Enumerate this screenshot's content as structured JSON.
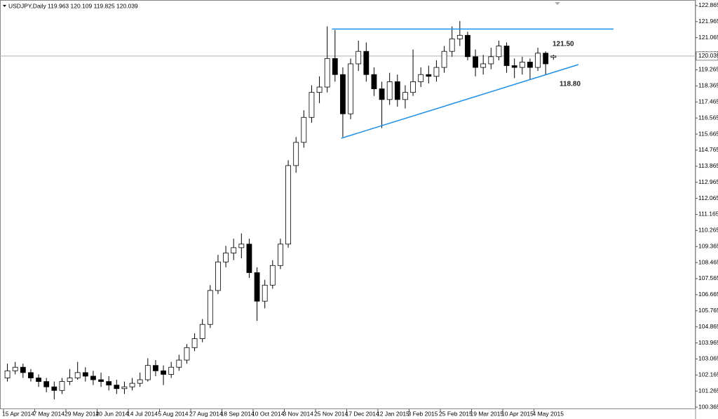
{
  "chart_data": {
    "type": "candlestick",
    "title": "USDJPY,Daily  119.963 120.109 119.825 120.039",
    "categories": [
      "15 Apr 2014",
      null,
      null,
      null,
      "7 May 2014",
      null,
      null,
      null,
      "29 May 2014",
      null,
      null,
      null,
      "20 Jun 2014",
      null,
      null,
      null,
      "14 Jul 2014",
      null,
      null,
      null,
      "5 Aug 2014",
      null,
      null,
      null,
      "27 Aug 2014",
      null,
      null,
      null,
      "18 Sep 2014",
      null,
      null,
      null,
      "10 Oct 2014",
      null,
      null,
      null,
      "3 Nov 2014",
      null,
      null,
      null,
      "25 Nov 2014",
      null,
      null,
      null,
      "17 Dec 2014",
      null,
      null,
      null,
      "12 Jan 2015",
      null,
      null,
      null,
      "3 Feb 2015",
      null,
      null,
      null,
      "25 Feb 2015",
      null,
      null,
      null,
      "19 Mar 2015",
      null,
      null,
      null,
      "10 Apr 2015",
      null,
      null,
      null,
      "4 May 2015",
      null,
      null
    ],
    "open": [
      102.0,
      102.4,
      102.6,
      102.3,
      102.0,
      101.8,
      101.5,
      101.3,
      101.8,
      102.0,
      102.3,
      102.1,
      101.9,
      101.8,
      101.6,
      101.4,
      101.5,
      101.7,
      101.9,
      102.7,
      102.4,
      102.2,
      102.6,
      103.0,
      103.7,
      104.2,
      105.0,
      106.9,
      108.5,
      109.0,
      109.3,
      109.5,
      107.9,
      106.3,
      107.2,
      108.3,
      109.5,
      113.9,
      115.2,
      116.6,
      118.0,
      118.3,
      119.9,
      119.0,
      116.8,
      119.6,
      120.3,
      119.0,
      118.2,
      117.6,
      118.6,
      117.6,
      118.0,
      118.6,
      119.0,
      118.9,
      119.4,
      120.3,
      121.0,
      121.2,
      120.0,
      119.4,
      119.6,
      120.0,
      120.6,
      119.5,
      119.4,
      119.7,
      119.4,
      120.2,
      119.963
    ],
    "high": [
      102.8,
      102.9,
      102.8,
      102.5,
      102.2,
      102.0,
      101.8,
      102.0,
      102.5,
      102.9,
      102.6,
      102.4,
      102.3,
      102.1,
      101.9,
      101.8,
      102.0,
      102.3,
      103.1,
      103.0,
      102.7,
      102.9,
      103.3,
      103.9,
      104.5,
      105.3,
      107.2,
      108.9,
      109.4,
      109.8,
      110.1,
      109.8,
      108.2,
      107.5,
      108.6,
      109.8,
      114.2,
      115.5,
      117.0,
      118.4,
      118.9,
      121.7,
      121.5,
      119.4,
      119.9,
      120.9,
      120.8,
      119.4,
      118.6,
      119.1,
      119.0,
      118.4,
      120.4,
      119.4,
      119.5,
      119.8,
      120.6,
      121.7,
      122.0,
      121.4,
      120.4,
      120.1,
      120.5,
      120.9,
      120.8,
      119.9,
      120.0,
      119.9,
      120.5,
      120.3,
      120.109
    ],
    "low": [
      101.8,
      102.2,
      102.0,
      101.8,
      101.5,
      101.2,
      100.8,
      101.1,
      101.6,
      101.9,
      101.8,
      101.6,
      101.5,
      101.3,
      101.1,
      101.1,
      101.3,
      101.5,
      101.8,
      102.1,
      101.6,
      102.0,
      102.4,
      102.8,
      103.5,
      104.0,
      104.8,
      106.7,
      108.2,
      108.6,
      108.7,
      107.6,
      105.2,
      105.9,
      107.0,
      108.1,
      109.3,
      113.5,
      114.9,
      116.3,
      117.4,
      118.0,
      118.6,
      115.5,
      116.5,
      119.2,
      118.6,
      117.8,
      116.0,
      117.3,
      117.2,
      117.1,
      117.8,
      118.3,
      118.5,
      118.6,
      119.1,
      120.0,
      120.6,
      119.8,
      118.9,
      119.0,
      119.3,
      119.8,
      119.1,
      118.8,
      119.0,
      118.7,
      119.2,
      119.0,
      119.825
    ],
    "close": [
      102.4,
      102.6,
      102.3,
      102.0,
      101.8,
      101.5,
      101.3,
      101.8,
      102.0,
      102.3,
      102.1,
      101.9,
      101.8,
      101.6,
      101.4,
      101.5,
      101.7,
      101.9,
      102.7,
      102.4,
      102.2,
      102.6,
      103.0,
      103.7,
      104.2,
      105.0,
      106.9,
      108.5,
      109.0,
      109.3,
      109.5,
      107.9,
      106.3,
      107.2,
      108.3,
      109.5,
      113.9,
      115.2,
      116.6,
      118.0,
      118.3,
      119.9,
      119.0,
      116.8,
      119.6,
      120.3,
      119.0,
      118.2,
      117.6,
      118.6,
      117.6,
      118.0,
      118.6,
      119.0,
      118.9,
      119.4,
      120.3,
      121.0,
      121.2,
      120.0,
      119.4,
      119.6,
      120.0,
      120.6,
      119.5,
      119.4,
      119.7,
      119.4,
      120.2,
      119.6,
      120.039
    ],
    "up_color": "#ffffff",
    "down_color": "#000000",
    "wick_color": "#000000",
    "ylim": [
      100.25,
      123.06
    ],
    "yticks": [
      100.365,
      101.265,
      102.165,
      103.065,
      103.965,
      104.865,
      105.765,
      106.665,
      107.565,
      108.465,
      109.365,
      110.265,
      111.165,
      112.065,
      112.965,
      113.865,
      114.765,
      115.665,
      116.565,
      117.465,
      118.365,
      119.265,
      120.165,
      121.065,
      121.965,
      122.865
    ],
    "price_line": 120.039,
    "trendlines": [
      {
        "x": [
          41.6,
          77.7
        ],
        "y": [
          121.55,
          121.55
        ],
        "color": "#1e8fe6"
      },
      {
        "x": [
          42.8,
          73.2
        ],
        "y": [
          115.43,
          119.56
        ],
        "color": "#1e8fe6"
      }
    ],
    "annotations": [
      "121.50",
      "118.80"
    ]
  }
}
